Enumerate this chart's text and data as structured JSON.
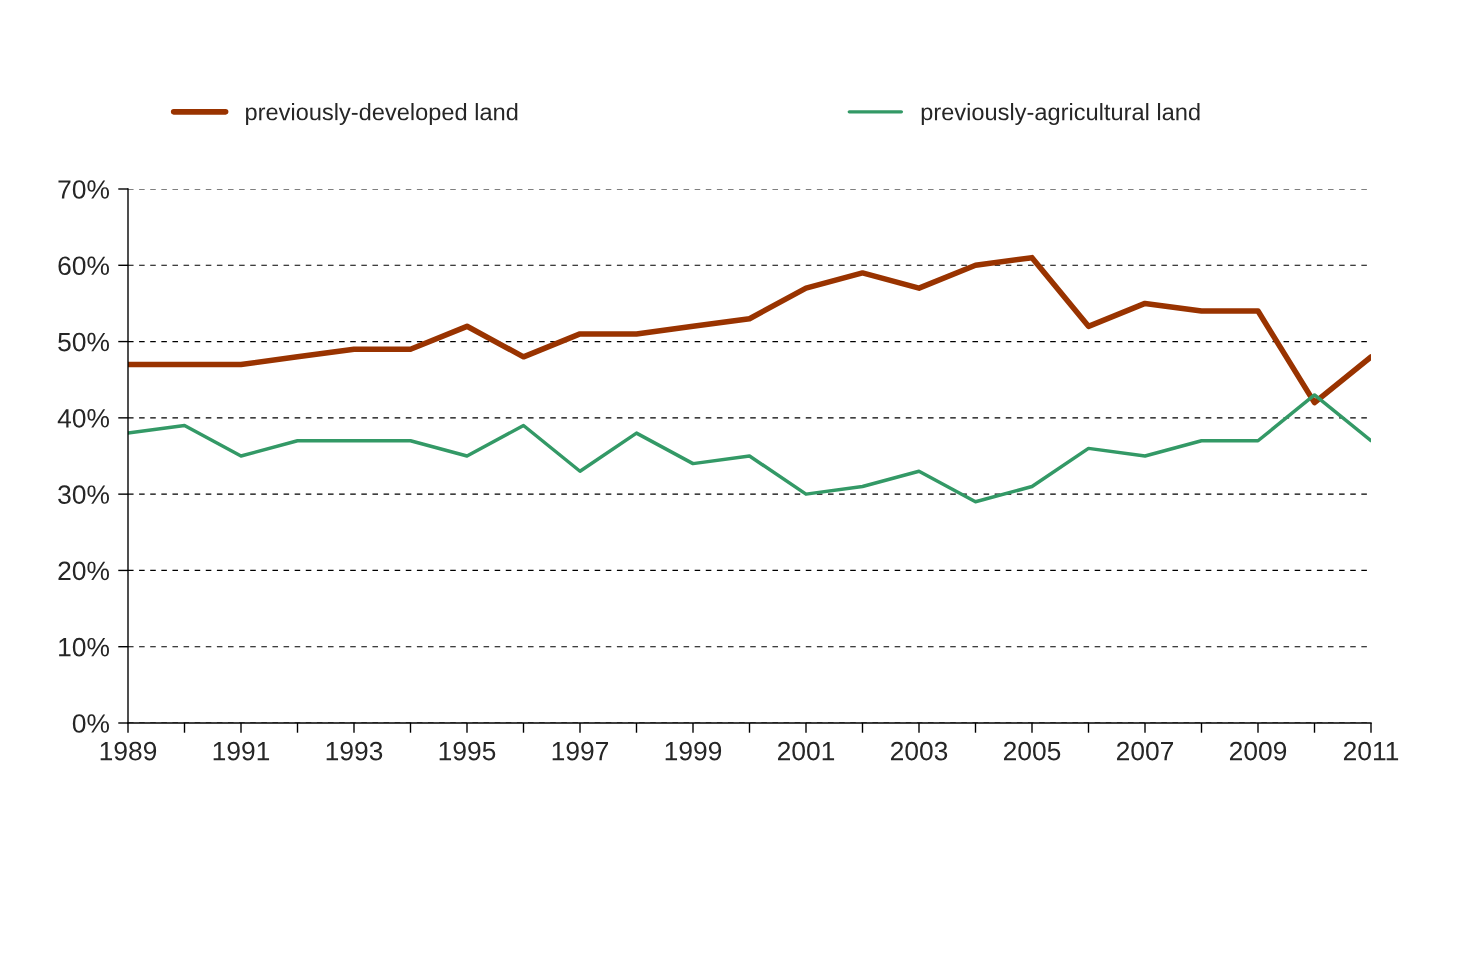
{
  "chart_data": {
    "type": "line",
    "x": [
      1989,
      1990,
      1991,
      1992,
      1993,
      1994,
      1995,
      1996,
      1997,
      1998,
      1999,
      2000,
      2001,
      2002,
      2003,
      2004,
      2005,
      2006,
      2007,
      2008,
      2009,
      2010,
      2011
    ],
    "series": [
      {
        "name": "previously-developed land",
        "color": "#993300",
        "values": [
          47,
          47,
          47,
          48,
          49,
          49,
          52,
          48,
          51,
          51,
          52,
          53,
          57,
          59,
          57,
          60,
          61,
          52,
          55,
          54,
          54,
          42,
          48
        ]
      },
      {
        "name": "previously-agricultural land",
        "color": "#339966",
        "values": [
          38,
          39,
          35,
          37,
          37,
          37,
          35,
          39,
          33,
          38,
          34,
          35,
          30,
          31,
          33,
          29,
          31,
          36,
          35,
          37,
          37,
          43,
          37
        ]
      }
    ],
    "xlim": [
      1989,
      2011
    ],
    "xticks": [
      1989,
      {
        "value": 1990,
        "label": null
      },
      1991,
      {
        "value": 1992,
        "label": null
      },
      1993,
      {
        "value": 1994,
        "label": null
      },
      1995,
      {
        "value": 1996,
        "label": null
      },
      1997,
      {
        "value": 1998,
        "label": null
      },
      1999,
      {
        "value": 2000,
        "label": null
      },
      2001,
      {
        "value": 2002,
        "label": null
      },
      2003,
      {
        "value": 2004,
        "label": null
      },
      2005,
      {
        "value": 2006,
        "label": null
      },
      2007,
      {
        "value": 2008,
        "label": null
      },
      2009,
      {
        "value": 2010,
        "label": null
      },
      2011
    ],
    "ylim": [
      0,
      70
    ],
    "yticks": [
      {
        "value": 0,
        "label": "0%"
      },
      {
        "value": 10,
        "label": "10%"
      },
      {
        "value": 20,
        "label": "20%"
      },
      {
        "value": 30,
        "label": "30%"
      },
      {
        "value": 40,
        "label": "40%"
      },
      {
        "value": 50,
        "label": "50%"
      },
      {
        "value": 60,
        "label": "60%"
      },
      {
        "value": 70,
        "label": "70%"
      }
    ],
    "grid": "y",
    "legend": "top",
    "line_style": "solid",
    "marker": "none"
  }
}
